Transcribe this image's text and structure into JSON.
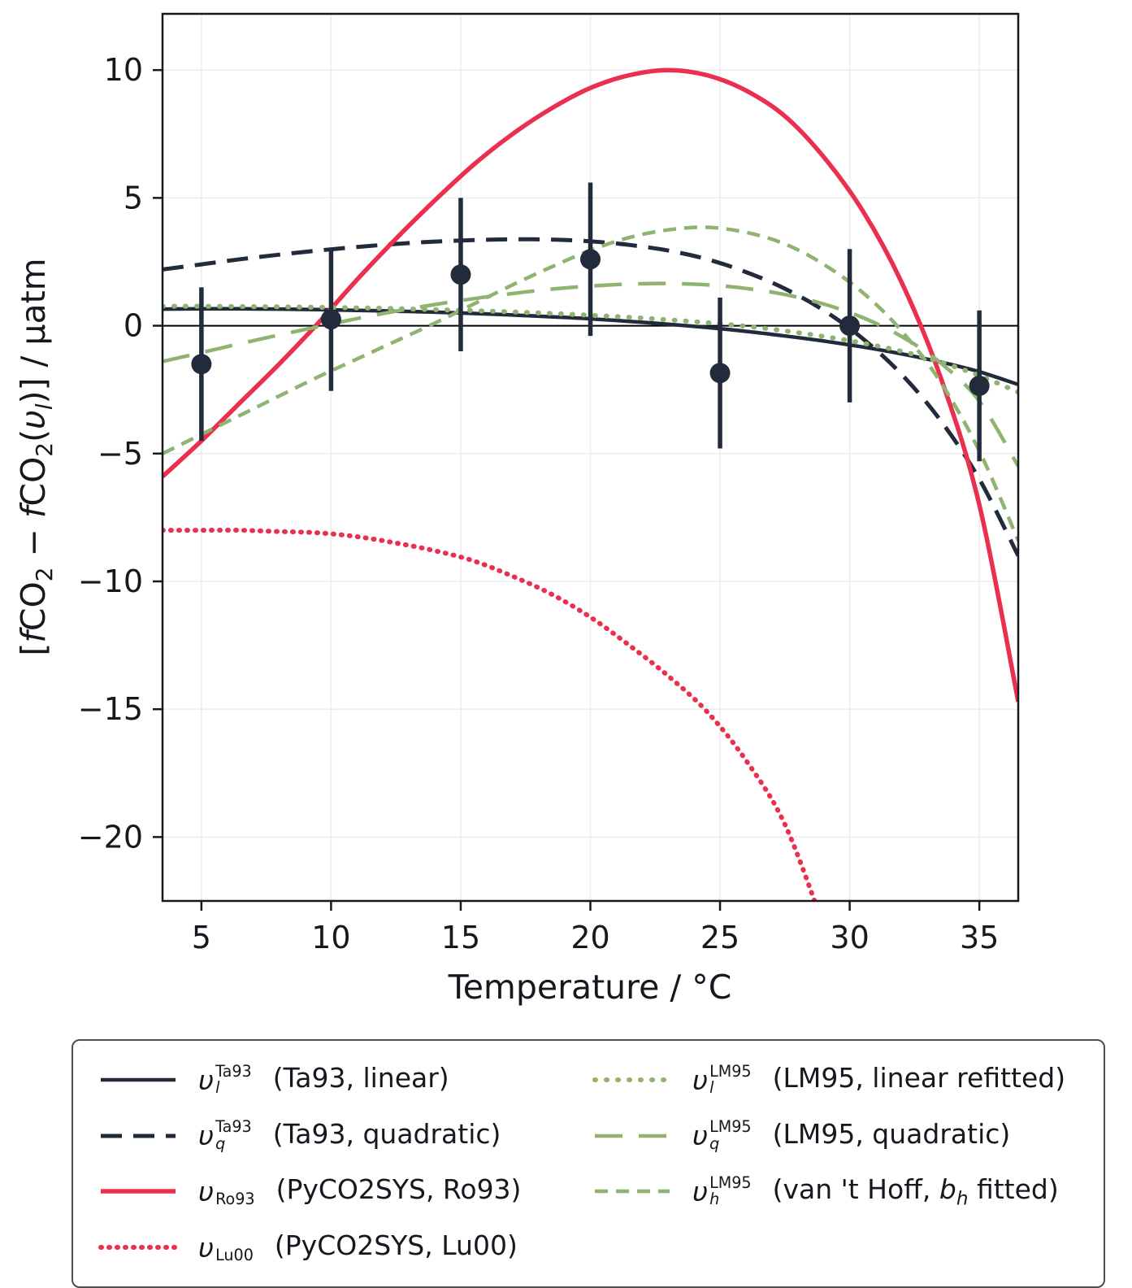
{
  "chart_data": {
    "type": "line",
    "title": "",
    "xlabel": "Temperature / °C",
    "ylabel": "[fCO2 − fCO2(υl)] / μatm",
    "ylabel_tokens": [
      "[",
      "f",
      "CO",
      "2",
      " − ",
      "f",
      "CO",
      "2",
      "(",
      "υ",
      "l",
      ")] / μatm"
    ],
    "xlim": [
      3.5,
      36.5
    ],
    "ylim": [
      -22.5,
      12.2
    ],
    "grid": true,
    "grid_color": "#ededed",
    "frame_color": "#16181d",
    "text_color": "#16181d",
    "zero_line": 0,
    "xticks": [
      {
        "v": 5,
        "label": "5"
      },
      {
        "v": 10,
        "label": "10"
      },
      {
        "v": 15,
        "label": "15"
      },
      {
        "v": 20,
        "label": "20"
      },
      {
        "v": 25,
        "label": "25"
      },
      {
        "v": 30,
        "label": "30"
      },
      {
        "v": 35,
        "label": "35"
      }
    ],
    "yticks": [
      {
        "v": -20,
        "label": "−20"
      },
      {
        "v": -15,
        "label": "−15"
      },
      {
        "v": -10,
        "label": "−10"
      },
      {
        "v": -5,
        "label": "−5"
      },
      {
        "v": 0,
        "label": "0"
      },
      {
        "v": 5,
        "label": "5"
      },
      {
        "v": 10,
        "label": "10"
      }
    ],
    "series": [
      {
        "id": "ta93_linear",
        "color": "#212b3b",
        "width": 4.5,
        "dash": "",
        "cap": "butt",
        "x": [
          3.5,
          5,
          6.5,
          8,
          9.5,
          11,
          12.5,
          14,
          15.5,
          17,
          18.5,
          20,
          21.5,
          23,
          24.5,
          26,
          27.5,
          29,
          30.5,
          32,
          33.5,
          35,
          36.5
        ],
        "y": [
          0.65,
          0.66,
          0.66,
          0.65,
          0.63,
          0.6,
          0.57,
          0.53,
          0.48,
          0.42,
          0.35,
          0.27,
          0.17,
          0.06,
          -0.07,
          -0.22,
          -0.4,
          -0.6,
          -0.83,
          -1.1,
          -1.42,
          -1.8,
          -2.3
        ]
      },
      {
        "id": "ta93_quadratic",
        "color": "#212b3b",
        "width": 5,
        "dash": "26 14",
        "cap": "butt",
        "x": [
          3.5,
          5,
          6.5,
          8,
          9.5,
          11,
          12.5,
          14,
          15.5,
          17,
          18.5,
          20,
          21.5,
          23,
          24.5,
          26,
          27.5,
          29,
          30.5,
          32,
          33.5,
          35,
          36.5
        ],
        "y": [
          2.2,
          2.4,
          2.6,
          2.78,
          2.94,
          3.08,
          3.2,
          3.29,
          3.35,
          3.38,
          3.37,
          3.3,
          3.16,
          2.94,
          2.6,
          2.1,
          1.45,
          0.6,
          -0.5,
          -1.9,
          -3.7,
          -6.0,
          -9.0
        ]
      },
      {
        "id": "ro93",
        "color": "#ea304e",
        "width": 5.5,
        "dash": "",
        "cap": "butt",
        "x": [
          3.5,
          5,
          6.5,
          8,
          9.5,
          11,
          12.5,
          14,
          15.5,
          17,
          18.5,
          20,
          21.5,
          23,
          24.5,
          26,
          27.5,
          29,
          30.5,
          32,
          33.5,
          35,
          36.5
        ],
        "y": [
          -5.9,
          -4.5,
          -3.0,
          -1.5,
          0.1,
          1.8,
          3.4,
          4.9,
          6.3,
          7.5,
          8.5,
          9.3,
          9.8,
          10.0,
          9.8,
          9.2,
          8.2,
          6.6,
          4.5,
          1.7,
          -2.0,
          -7.0,
          -14.7
        ]
      },
      {
        "id": "lu00",
        "color": "#ea304e",
        "width": 6,
        "dash": "1 9",
        "cap": "round",
        "x": [
          3.5,
          5,
          6.5,
          8,
          9.5,
          11,
          12.5,
          14,
          15.5,
          17,
          18.5,
          20,
          21.5,
          23,
          24.5,
          26,
          27.5,
          29
        ],
        "y": [
          -8.0,
          -8.0,
          -8.0,
          -8.05,
          -8.1,
          -8.25,
          -8.5,
          -8.8,
          -9.2,
          -9.8,
          -10.5,
          -11.4,
          -12.5,
          -13.7,
          -15.1,
          -17.0,
          -19.5,
          -23.5
        ]
      },
      {
        "id": "lm95_linear",
        "color": "#8fb371",
        "width": 6,
        "dash": "1 13",
        "cap": "round",
        "x": [
          3.5,
          5,
          6.5,
          8,
          9.5,
          11,
          12.5,
          14,
          15.5,
          17,
          18.5,
          20,
          21.5,
          23,
          24.5,
          26,
          27.5,
          29,
          30.5,
          32,
          33.5,
          35,
          36.5
        ],
        "y": [
          0.76,
          0.76,
          0.75,
          0.74,
          0.72,
          0.7,
          0.67,
          0.63,
          0.59,
          0.54,
          0.48,
          0.41,
          0.33,
          0.23,
          0.12,
          -0.02,
          -0.2,
          -0.42,
          -0.68,
          -1.0,
          -1.42,
          -1.95,
          -2.6
        ]
      },
      {
        "id": "lm95_quadratic",
        "color": "#8fb371",
        "width": 4.5,
        "dash": "34 20",
        "cap": "butt",
        "x": [
          3.5,
          5,
          6.5,
          8,
          9.5,
          11,
          12.5,
          14,
          15.5,
          17,
          18.5,
          20,
          21.5,
          23,
          24.5,
          26,
          27.5,
          29,
          30.5,
          32,
          33.5,
          35,
          36.5
        ],
        "y": [
          -1.4,
          -1.05,
          -0.7,
          -0.36,
          -0.04,
          0.28,
          0.57,
          0.83,
          1.06,
          1.26,
          1.43,
          1.55,
          1.63,
          1.65,
          1.6,
          1.46,
          1.22,
          0.85,
          0.32,
          -0.42,
          -1.45,
          -2.95,
          -5.5
        ]
      },
      {
        "id": "lm95_vanthoff",
        "color": "#8fb371",
        "width": 4.5,
        "dash": "16 10",
        "cap": "butt",
        "x": [
          3.5,
          5,
          6.5,
          8,
          9.5,
          11,
          12.5,
          14,
          15.5,
          17,
          18.5,
          20,
          21.5,
          23,
          24.5,
          26,
          27.5,
          29,
          30.5,
          32,
          33.5,
          35,
          36.5
        ],
        "y": [
          -5.0,
          -4.25,
          -3.5,
          -2.75,
          -2.0,
          -1.3,
          -0.6,
          0.1,
          0.85,
          1.6,
          2.3,
          2.95,
          3.45,
          3.75,
          3.85,
          3.65,
          3.2,
          2.4,
          1.3,
          -0.2,
          -2.2,
          -4.9,
          -8.4
        ]
      }
    ],
    "points": {
      "color": "#212b3b",
      "marker_radius": 12.5,
      "x": [
        5,
        10,
        15,
        20,
        25,
        30,
        35
      ],
      "y": [
        -1.5,
        0.25,
        2.0,
        2.6,
        -1.85,
        0.0,
        -2.35
      ],
      "yerr": [
        3.0,
        2.8,
        3.0,
        3.0,
        2.95,
        3.0,
        2.95
      ]
    }
  },
  "legend": {
    "items": [
      {
        "series": "ta93_linear",
        "symbol": "υ",
        "sup": "Ta93",
        "sub": "l",
        "label_pre": "(Ta93, linear)"
      },
      {
        "series": "ta93_quadratic",
        "symbol": "υ",
        "sup": "Ta93",
        "sub": "q",
        "label_pre": "(Ta93, quadratic)"
      },
      {
        "series": "ro93",
        "symbol": "υ",
        "sup": "",
        "sub": "Ro93",
        "label_pre": "(PyCO2SYS, Ro93)"
      },
      {
        "series": "lu00",
        "symbol": "υ",
        "sup": "",
        "sub": "Lu00",
        "label_pre": "(PyCO2SYS, Lu00)"
      },
      {
        "series": "lm95_linear",
        "symbol": "υ",
        "sup": "LM95",
        "sub": "l",
        "label_pre": "(LM95, linear refitted)"
      },
      {
        "series": "lm95_quadratic",
        "symbol": "υ",
        "sup": "LM95",
        "sub": "q",
        "label_pre": "(LM95, quadratic)"
      },
      {
        "series": "lm95_vanthoff",
        "symbol": "υ",
        "sup": "LM95",
        "sub": "h",
        "label_pre": "(van 't Hoff, ",
        "label_b": "b",
        "label_bsub": "h",
        "label_post": " fitted)"
      }
    ]
  }
}
